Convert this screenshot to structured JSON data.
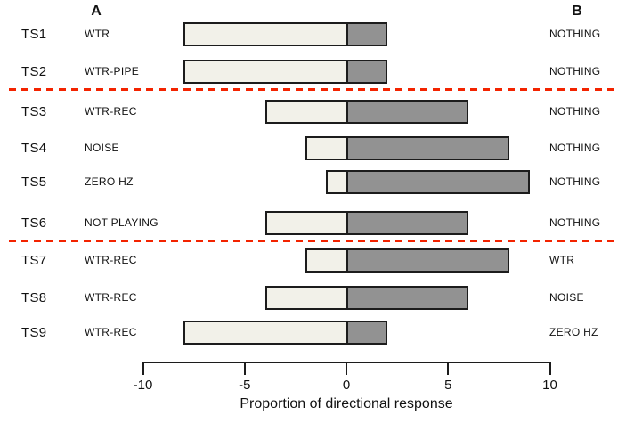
{
  "header": {
    "col_a": "A",
    "col_b": "B"
  },
  "chart_data": {
    "type": "bar",
    "orientation": "horizontal-diverging",
    "title": "",
    "xlabel": "Proportion of directional response",
    "xlim": [
      -10,
      10
    ],
    "xticks": [
      -10,
      -5,
      0,
      5,
      10
    ],
    "grid": false,
    "legend": "none",
    "categories": [
      "TS1",
      "TS2",
      "TS3",
      "TS4",
      "TS5",
      "TS6",
      "TS7",
      "TS8",
      "TS9"
    ],
    "rows": [
      {
        "id": "TS1",
        "stimulus_a": "WTR",
        "stimulus_b": "NOTHING",
        "left": -8,
        "right": 2
      },
      {
        "id": "TS2",
        "stimulus_a": "WTR-PIPE",
        "stimulus_b": "NOTHING",
        "left": -8,
        "right": 2
      },
      {
        "id": "TS3",
        "stimulus_a": "WTR-REC",
        "stimulus_b": "NOTHING",
        "left": -4,
        "right": 6
      },
      {
        "id": "TS4",
        "stimulus_a": "NOISE",
        "stimulus_b": "NOTHING",
        "left": -2,
        "right": 8
      },
      {
        "id": "TS5",
        "stimulus_a": "ZERO HZ",
        "stimulus_b": "NOTHING",
        "left": -1,
        "right": 9
      },
      {
        "id": "TS6",
        "stimulus_a": "NOT PLAYING",
        "stimulus_b": "NOTHING",
        "left": -4,
        "right": 6
      },
      {
        "id": "TS7",
        "stimulus_a": "WTR-REC",
        "stimulus_b": "WTR",
        "left": -2,
        "right": 8
      },
      {
        "id": "TS8",
        "stimulus_a": "WTR-REC",
        "stimulus_b": "NOISE",
        "left": -4,
        "right": 6
      },
      {
        "id": "TS9",
        "stimulus_a": "WTR-REC",
        "stimulus_b": "ZERO HZ",
        "left": -8,
        "right": 2
      }
    ],
    "separators_after_rows": [
      1,
      5
    ],
    "colors": {
      "left_bar_fill": "#f2f1e9",
      "right_bar_fill": "#929292",
      "bar_border": "#1c1c1c",
      "separator_red": "#f32300",
      "axis": "#1c1c1c",
      "text": "#111111"
    }
  }
}
